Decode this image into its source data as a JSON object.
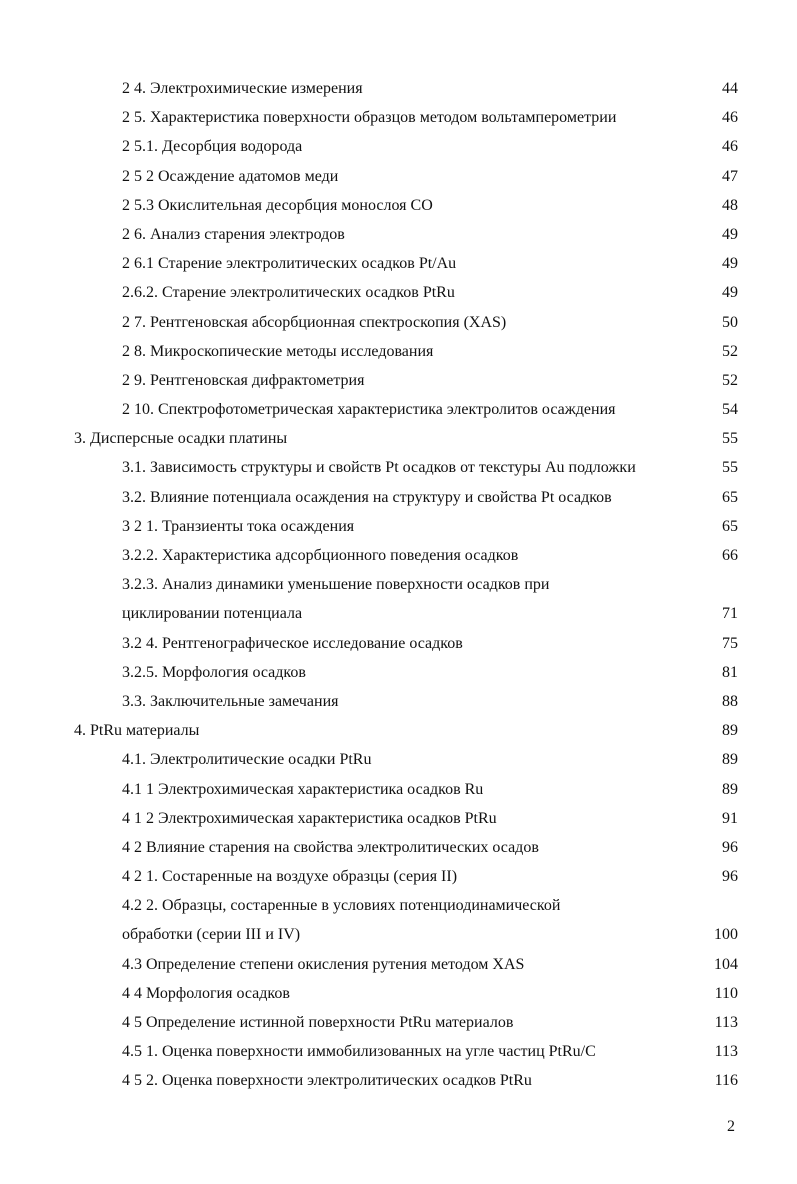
{
  "toc": [
    {
      "title": "2 4. Электрохимические измерения",
      "page": "44",
      "level": 1
    },
    {
      "title": "2 5. Характеристика поверхности образцов методом вольтамперометрии",
      "page": "46",
      "level": 1
    },
    {
      "title": "2 5.1. Десорбция водорода",
      "page": "46",
      "level": 1
    },
    {
      "title": "2 5 2  Осаждение адатомов меди",
      "page": "47",
      "level": 1
    },
    {
      "title": "2 5.3  Окислительная десорбция монослоя СО",
      "page": "48",
      "level": 1
    },
    {
      "title": "2 6. Анализ старения электродов",
      "page": "49",
      "level": 1
    },
    {
      "title": "2 6.1  Старение электролитических осадков Pt/Au",
      "page": "49",
      "level": 1
    },
    {
      "title": "2.6.2. Старение электролитических осадков PtRu",
      "page": "49",
      "level": 1
    },
    {
      "title": "2 7. Рентгеновская абсорбционная спектроскопия (XAS)",
      "page": "50",
      "level": 1
    },
    {
      "title": "2 8. Микроскопические методы исследования",
      "page": "52",
      "level": 1
    },
    {
      "title": "2 9. Рентгеновская дифрактометрия",
      "page": "52",
      "level": 1
    },
    {
      "title": "2 10. Спектрофотометрическая характеристика электролитов осаждения",
      "page": "54",
      "level": 1
    },
    {
      "title": "3. Дисперсные осадки платины",
      "page": "55",
      "level": 0
    },
    {
      "title": "3.1. Зависимость структуры и свойств Pt осадков от текстуры Au подложки",
      "page": "55",
      "level": 1
    },
    {
      "title": "3.2. Влияние потенциала осаждения на структуру и свойства Pt осадков",
      "page": "65",
      "level": 1
    },
    {
      "title": "3 2 1. Транзиенты тока осаждения",
      "page": "65",
      "level": 1
    },
    {
      "title": "3.2.2. Характеристика адсорбционного поведения осадков",
      "page": "66",
      "level": 1
    },
    {
      "title": "3.2.3. Анализ динамики уменьшение поверхности осадков при",
      "title2": "циклировании потенциала",
      "page": "71",
      "level": 1
    },
    {
      "title": "3.2 4. Рентгенографическое исследование осадков",
      "page": "75",
      "level": 1
    },
    {
      "title": "3.2.5. Морфология осадков",
      "page": "81",
      "level": 1
    },
    {
      "title": "3.3. Заключительные замечания",
      "page": "88",
      "level": 1
    },
    {
      "title": "4. PtRu материалы",
      "page": "89",
      "level": 0
    },
    {
      "title": "4.1. Электролитические осадки PtRu",
      "page": "89",
      "level": 1
    },
    {
      "title": "4.1 1  Электрохимическая характеристика осадков Ru",
      "page": "89",
      "level": 1
    },
    {
      "title": "4 1 2  Электрохимическая характеристика осадков PtRu",
      "page": "91",
      "level": 1
    },
    {
      "title": "4 2  Влияние старения на свойства электролитических осадов",
      "page": "96",
      "level": 1
    },
    {
      "title": "4 2 1. Состаренные на воздухе образцы (серия II)",
      "page": "96",
      "level": 1
    },
    {
      "title": "4.2 2. Образцы, состаренные в условиях потенциодинамической",
      "title2": "обработки (серии III и IV)",
      "page": "100",
      "level": 1
    },
    {
      "title": "4.3  Определение степени окисления рутения методом XAS",
      "page": "104",
      "level": 1
    },
    {
      "title": "4 4  Морфология осадков",
      "page": "110",
      "level": 1
    },
    {
      "title": "4 5  Определение истинной поверхности PtRu материалов",
      "page": "113",
      "level": 1
    },
    {
      "title": "4.5 1. Оценка поверхности иммобилизованных на угле частиц PtRu/C",
      "page": "113",
      "level": 1
    },
    {
      "title": "4 5 2. Оценка поверхности электролитических осадков PtRu",
      "page": "116",
      "level": 1
    }
  ],
  "page_number": "2"
}
